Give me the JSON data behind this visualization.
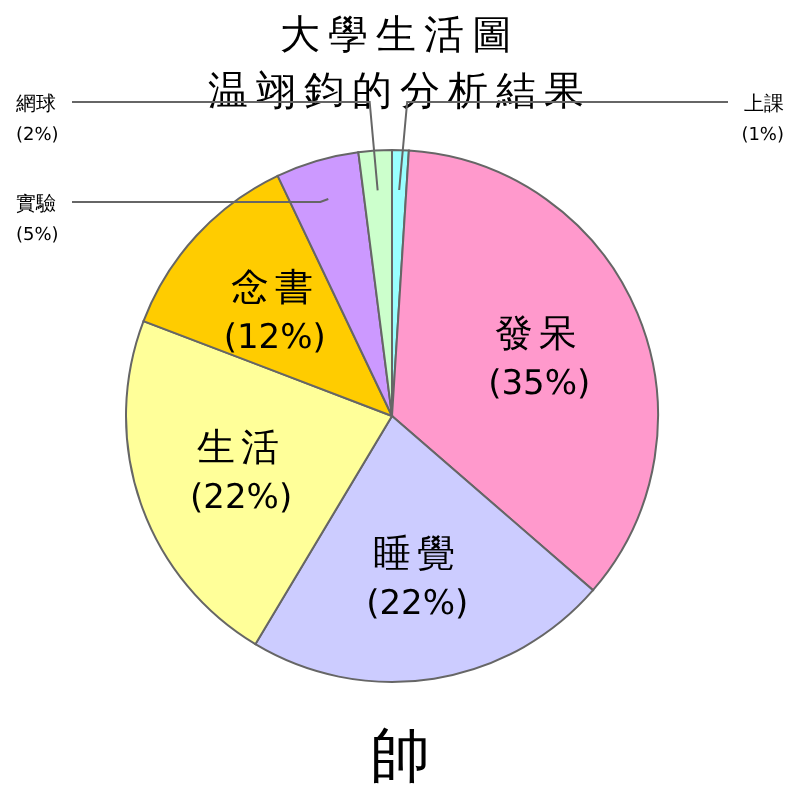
{
  "chart_data": {
    "type": "pie",
    "title": "大學生活圖",
    "subtitle": "温翊鈞的分析結果",
    "categories": [
      "上課",
      "發呆",
      "睡覺",
      "生活",
      "念書",
      "實驗",
      "網球"
    ],
    "values": [
      1,
      35,
      22,
      22,
      12,
      5,
      2
    ],
    "value_labels": [
      "(1%)",
      "(35%)",
      "(22%)",
      "(22%)",
      "(12%)",
      "(5%)",
      "(2%)"
    ],
    "colors": [
      "#99ffff",
      "#ff99cc",
      "#ccccff",
      "#ffff99",
      "#ffcc00",
      "#cc99ff",
      "#ccffcc"
    ],
    "annotations": [
      "帥"
    ]
  }
}
